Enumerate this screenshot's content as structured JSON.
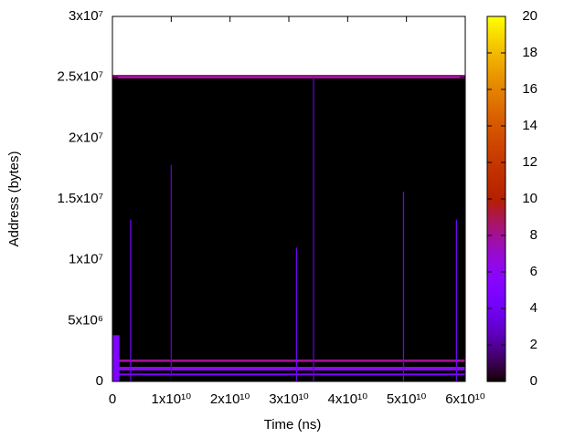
{
  "chart_data": {
    "type": "heatmap",
    "xlabel": "Time (ns)",
    "ylabel": "Address (bytes)",
    "xlim": [
      0,
      60000000000
    ],
    "xticks": [
      0,
      {
        "value": 10000000000,
        "label": "1x10¹⁰"
      },
      {
        "value": 20000000000,
        "label": "2x10¹⁰"
      },
      {
        "value": 30000000000,
        "label": "3x10¹⁰"
      },
      {
        "value": 40000000000,
        "label": "4x10¹⁰"
      },
      {
        "value": 50000000000,
        "label": "5x10¹⁰"
      },
      {
        "value": 60000000000,
        "label": "6x10¹⁰"
      }
    ],
    "ylim": [
      0,
      30000000
    ],
    "yticks": [
      0,
      {
        "value": 5000000,
        "label": "5x10⁶"
      },
      {
        "value": 10000000,
        "label": "1x10⁷"
      },
      {
        "value": 15000000,
        "label": "1.5x10⁷"
      },
      {
        "value": 20000000,
        "label": "2x10⁷"
      },
      {
        "value": 25000000,
        "label": "2.5x10⁷"
      },
      {
        "value": 30000000,
        "label": "3x10⁷"
      }
    ],
    "zlim": [
      0,
      20
    ],
    "zticks": [
      0,
      2,
      4,
      6,
      8,
      10,
      12,
      14,
      16,
      18,
      20
    ],
    "cells": [
      {
        "x": [
          0,
          60000000000
        ],
        "y": [
          0,
          25200000
        ],
        "value": 0
      },
      {
        "x": [
          0,
          60000000000
        ],
        "y": [
          24900000,
          25200000
        ],
        "value": 8
      },
      {
        "x": [
          0,
          60000000000
        ],
        "y": [
          1600000,
          1800000
        ],
        "value": 8
      },
      {
        "x": [
          0,
          60000000000
        ],
        "y": [
          900000,
          1200000
        ],
        "value": 6
      },
      {
        "x": [
          0,
          60000000000
        ],
        "y": [
          500000,
          650000
        ],
        "value": 5
      },
      {
        "x": [
          0,
          1200000000
        ],
        "y": [
          0,
          3800000
        ],
        "value": 5
      },
      {
        "x": [
          3000000000,
          3200000000
        ],
        "y": [
          0,
          13300000
        ],
        "value": 4
      },
      {
        "x": [
          9900000000,
          10100000000
        ],
        "y": [
          0,
          17800000
        ],
        "value": 3
      },
      {
        "x": [
          31200000000,
          31400000000
        ],
        "y": [
          0,
          11000000
        ],
        "value": 4
      },
      {
        "x": [
          34100000000,
          34300000000
        ],
        "y": [
          0,
          25000000
        ],
        "value": 3
      },
      {
        "x": [
          49400000000,
          49600000000
        ],
        "y": [
          0,
          15600000
        ],
        "value": 4
      },
      {
        "x": [
          58400000000,
          58600000000
        ],
        "y": [
          0,
          13300000
        ],
        "value": 4
      }
    ]
  }
}
